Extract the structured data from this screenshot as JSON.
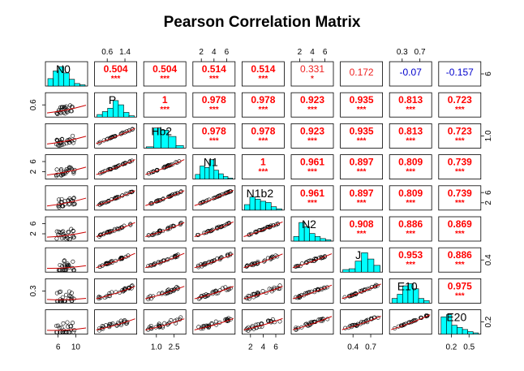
{
  "chart_data": {
    "type": "scatter-matrix",
    "title": "Pearson Correlation Matrix",
    "variables": [
      "N0",
      "P",
      "Hb2",
      "N1",
      "N1b2",
      "N2",
      "J",
      "E10",
      "E20"
    ],
    "correlations": [
      {
        "row": 0,
        "col": 1,
        "r": "0.504",
        "stars": "***"
      },
      {
        "row": 0,
        "col": 2,
        "r": "0.504",
        "stars": "***"
      },
      {
        "row": 0,
        "col": 3,
        "r": "0.514",
        "stars": "***"
      },
      {
        "row": 0,
        "col": 4,
        "r": "0.514",
        "stars": "***"
      },
      {
        "row": 0,
        "col": 5,
        "r": "0.331",
        "stars": "*"
      },
      {
        "row": 0,
        "col": 6,
        "r": "0.172",
        "stars": ""
      },
      {
        "row": 0,
        "col": 7,
        "r": "-0.07",
        "stars": ""
      },
      {
        "row": 0,
        "col": 8,
        "r": "-0.157",
        "stars": ""
      },
      {
        "row": 1,
        "col": 2,
        "r": "1",
        "stars": "***"
      },
      {
        "row": 1,
        "col": 3,
        "r": "0.978",
        "stars": "***"
      },
      {
        "row": 1,
        "col": 4,
        "r": "0.978",
        "stars": "***"
      },
      {
        "row": 1,
        "col": 5,
        "r": "0.923",
        "stars": "***"
      },
      {
        "row": 1,
        "col": 6,
        "r": "0.935",
        "stars": "***"
      },
      {
        "row": 1,
        "col": 7,
        "r": "0.813",
        "stars": "***"
      },
      {
        "row": 1,
        "col": 8,
        "r": "0.723",
        "stars": "***"
      },
      {
        "row": 2,
        "col": 3,
        "r": "0.978",
        "stars": "***"
      },
      {
        "row": 2,
        "col": 4,
        "r": "0.978",
        "stars": "***"
      },
      {
        "row": 2,
        "col": 5,
        "r": "0.923",
        "stars": "***"
      },
      {
        "row": 2,
        "col": 6,
        "r": "0.935",
        "stars": "***"
      },
      {
        "row": 2,
        "col": 7,
        "r": "0.813",
        "stars": "***"
      },
      {
        "row": 2,
        "col": 8,
        "r": "0.723",
        "stars": "***"
      },
      {
        "row": 3,
        "col": 4,
        "r": "1",
        "stars": "***"
      },
      {
        "row": 3,
        "col": 5,
        "r": "0.961",
        "stars": "***"
      },
      {
        "row": 3,
        "col": 6,
        "r": "0.897",
        "stars": "***"
      },
      {
        "row": 3,
        "col": 7,
        "r": "0.809",
        "stars": "***"
      },
      {
        "row": 3,
        "col": 8,
        "r": "0.739",
        "stars": "***"
      },
      {
        "row": 4,
        "col": 5,
        "r": "0.961",
        "stars": "***"
      },
      {
        "row": 4,
        "col": 6,
        "r": "0.897",
        "stars": "***"
      },
      {
        "row": 4,
        "col": 7,
        "r": "0.809",
        "stars": "***"
      },
      {
        "row": 4,
        "col": 8,
        "r": "0.739",
        "stars": "***"
      },
      {
        "row": 5,
        "col": 6,
        "r": "0.908",
        "stars": "***"
      },
      {
        "row": 5,
        "col": 7,
        "r": "0.886",
        "stars": "***"
      },
      {
        "row": 5,
        "col": 8,
        "r": "0.869",
        "stars": "***"
      },
      {
        "row": 6,
        "col": 7,
        "r": "0.953",
        "stars": "***"
      },
      {
        "row": 6,
        "col": 8,
        "r": "0.886",
        "stars": "***"
      },
      {
        "row": 7,
        "col": 8,
        "r": "0.975",
        "stars": "***"
      }
    ],
    "top_axis_ticks": [
      {
        "col": 1,
        "labels": [
          "0.6",
          "1.4"
        ]
      },
      {
        "col": 3,
        "labels": [
          "2",
          "4",
          "6"
        ]
      },
      {
        "col": 5,
        "labels": [
          "2",
          "4",
          "6"
        ]
      },
      {
        "col": 7,
        "labels": [
          "0.3",
          "0.7"
        ]
      }
    ],
    "bottom_axis_ticks": [
      {
        "col": 0,
        "labels": [
          "6",
          "10"
        ]
      },
      {
        "col": 2,
        "labels": [
          "1.0",
          "2.5"
        ]
      },
      {
        "col": 4,
        "labels": [
          "2",
          "4",
          "6"
        ]
      },
      {
        "col": 6,
        "labels": [
          "0.4",
          "0.7"
        ]
      },
      {
        "col": 8,
        "labels": [
          "0.2",
          "0.5"
        ]
      }
    ],
    "left_axis_ticks": [
      {
        "row": 1,
        "labels": [
          "0.6"
        ]
      },
      {
        "row": 3,
        "labels": [
          "2",
          "6"
        ]
      },
      {
        "row": 5,
        "labels": [
          "2",
          "6"
        ]
      },
      {
        "row": 7,
        "labels": [
          "0.3"
        ]
      }
    ],
    "right_axis_ticks": [
      {
        "row": 0,
        "labels": [
          "6"
        ]
      },
      {
        "row": 2,
        "labels": [
          "1.0"
        ]
      },
      {
        "row": 4,
        "labels": [
          "2",
          "6"
        ]
      },
      {
        "row": 6,
        "labels": [
          "0.4"
        ]
      },
      {
        "row": 8,
        "labels": [
          "0.2"
        ]
      }
    ],
    "histograms": [
      [
        0.35,
        0.72,
        0.92,
        0.62,
        0.32,
        0.12,
        0.06
      ],
      [
        0.12,
        0.26,
        0.42,
        0.78,
        0.58,
        0.22,
        0.06
      ],
      [
        0.06,
        0.95,
        0.85,
        0.55,
        0.12
      ],
      [
        0.22,
        0.62,
        0.55,
        0.92,
        0.42,
        0.25,
        0.12,
        0.05
      ],
      [
        0.26,
        0.62,
        0.52,
        0.42,
        0.36,
        0.16,
        0.06
      ],
      [
        0.22,
        0.88,
        0.68,
        0.36,
        0.22,
        0.12,
        0.06
      ],
      [
        0.12,
        0.16,
        0.52,
        0.92,
        0.62,
        0.32
      ],
      [
        0.22,
        0.42,
        0.82,
        0.92,
        0.68,
        0.22,
        0.12
      ],
      [
        0.82,
        0.92,
        0.42,
        0.32,
        0.22,
        0.12,
        0.06
      ]
    ],
    "colors": {
      "strong": "#ff0000",
      "weak": "#ee2222",
      "negative": "#0000cc",
      "histogram_fill": "#00ffff",
      "smoother": "#cc0000"
    },
    "grid": false,
    "legend": "none"
  }
}
